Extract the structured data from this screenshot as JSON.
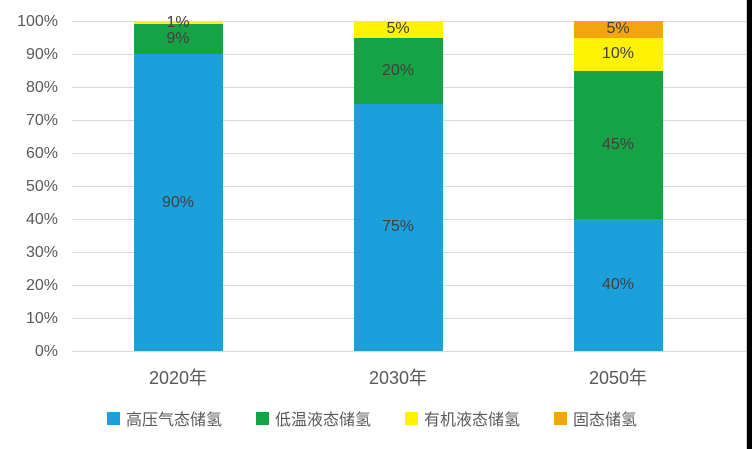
{
  "chart_data": {
    "type": "bar",
    "stacked": true,
    "percent_stacked": true,
    "title": "",
    "xlabel": "",
    "ylabel": "",
    "ylim": [
      0,
      100
    ],
    "grid": true,
    "legend_position": "bottom",
    "categories": [
      "2020年",
      "2030年",
      "2050年"
    ],
    "yticks": [
      "0%",
      "10%",
      "20%",
      "30%",
      "40%",
      "50%",
      "60%",
      "70%",
      "80%",
      "90%",
      "100%"
    ],
    "series": [
      {
        "name": "高压气态储氢",
        "color": "#1BA0DC",
        "values": [
          90,
          75,
          40
        ]
      },
      {
        "name": "低温液态储氢",
        "color": "#16A346",
        "values": [
          9,
          20,
          45
        ]
      },
      {
        "name": "有机液态储氢",
        "color": "#FEF102",
        "values": [
          1,
          5,
          10
        ]
      },
      {
        "name": "固态储氢",
        "color": "#F2A50F",
        "values": [
          0,
          0,
          5
        ]
      }
    ],
    "data_labels": [
      [
        "90%",
        "75%",
        "40%"
      ],
      [
        "9%",
        "20%",
        "45%"
      ],
      [
        "1%",
        "5%",
        "10%"
      ],
      [
        "",
        "",
        "5%"
      ]
    ]
  },
  "colors": {
    "gridline": "#D9D9D9",
    "axis_text": "#595959",
    "data_label_text": "#404040",
    "background": "#FFFFFF",
    "edge_strip": "#000000"
  }
}
